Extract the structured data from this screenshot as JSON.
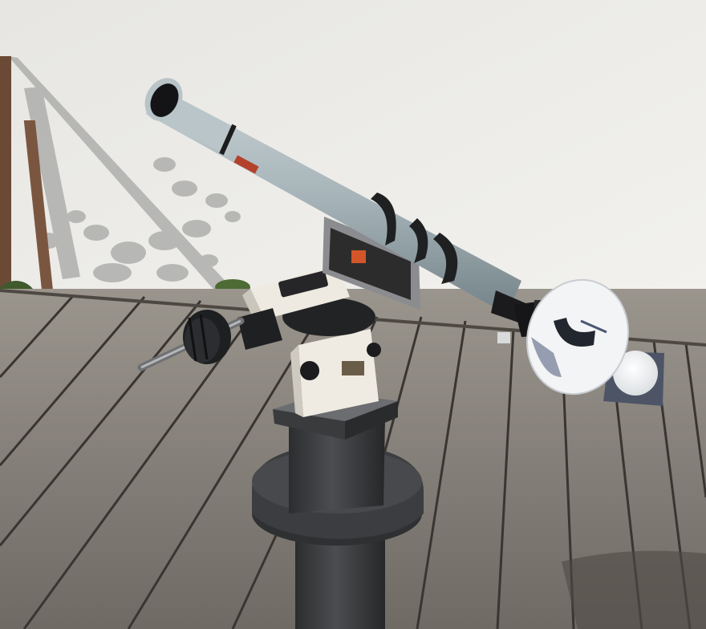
{
  "scene": {
    "colors": {
      "wall": "#ecebe7",
      "wall_shadow": "#a9aaa9",
      "deck_light": "#8d8880",
      "deck_dark": "#5e5954",
      "deck_gap": "#2f2b28",
      "tube": "#a9b7bc",
      "tube_shade": "#7d8c92",
      "mount": "#eeeae0",
      "pier": "#3a3b3d",
      "screen": "#f4f5f7"
    },
    "icons": [
      "sun-projection-screen-icon",
      "telescope-icon"
    ]
  }
}
